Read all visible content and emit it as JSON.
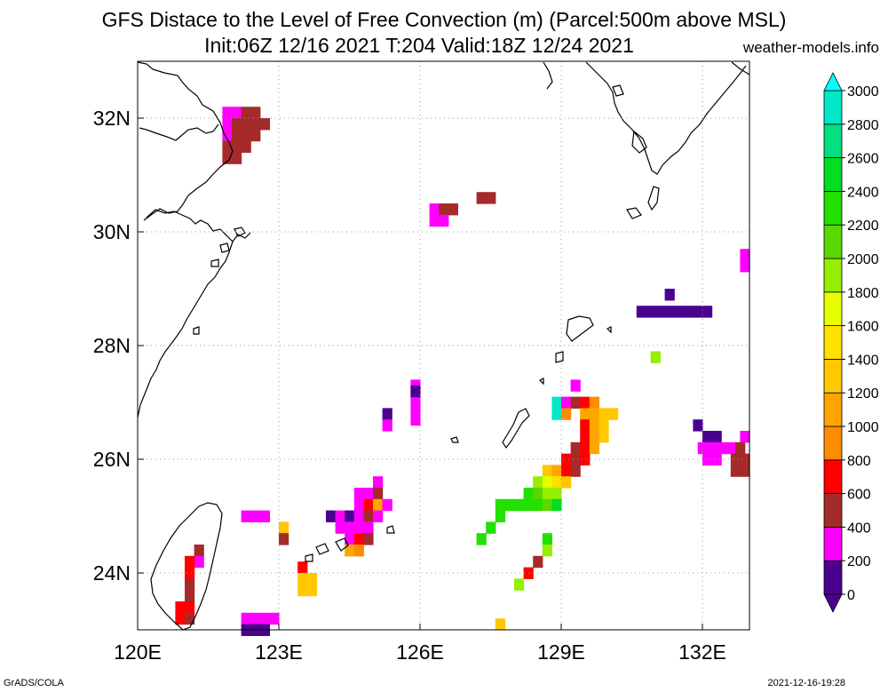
{
  "header": {
    "title_line1": "GFS Distace to the Level of Free Convection (m) (Parcel:500m above MSL)",
    "title_line2": "Init:06Z 12/16 2021 T:204 Valid:18Z 12/24 2021",
    "site": "weather-models.info"
  },
  "footer": {
    "left": "GrADS/COLA",
    "right": "2021-12-16-19:28"
  },
  "map": {
    "lon_range": [
      120,
      133
    ],
    "lat_range": [
      23,
      33
    ],
    "lon_ticks": [
      {
        "value": 120,
        "label": "120E"
      },
      {
        "value": 123,
        "label": "123E"
      },
      {
        "value": 126,
        "label": "126E"
      },
      {
        "value": 129,
        "label": "129E"
      },
      {
        "value": 132,
        "label": "132E"
      }
    ],
    "lat_ticks": [
      {
        "value": 24,
        "label": "24N"
      },
      {
        "value": 26,
        "label": "26N"
      },
      {
        "value": 28,
        "label": "28N"
      },
      {
        "value": 30,
        "label": "30N"
      },
      {
        "value": 32,
        "label": "32N"
      }
    ],
    "grid": true,
    "cells": [
      {
        "lon": 121.9,
        "lat": 32.1,
        "level": 200
      },
      {
        "lon": 122.1,
        "lat": 32.1,
        "level": 200
      },
      {
        "lon": 122.3,
        "lat": 32.1,
        "level": 400
      },
      {
        "lon": 122.5,
        "lat": 32.1,
        "level": 400
      },
      {
        "lon": 121.9,
        "lat": 31.9,
        "level": 200
      },
      {
        "lon": 122.1,
        "lat": 31.9,
        "level": 400
      },
      {
        "lon": 122.3,
        "lat": 31.9,
        "level": 400
      },
      {
        "lon": 122.5,
        "lat": 31.9,
        "level": 400
      },
      {
        "lon": 122.7,
        "lat": 31.9,
        "level": 400
      },
      {
        "lon": 121.9,
        "lat": 31.7,
        "level": 200
      },
      {
        "lon": 122.1,
        "lat": 31.7,
        "level": 400
      },
      {
        "lon": 122.3,
        "lat": 31.7,
        "level": 400
      },
      {
        "lon": 122.5,
        "lat": 31.7,
        "level": 400
      },
      {
        "lon": 121.9,
        "lat": 31.5,
        "level": 400
      },
      {
        "lon": 122.1,
        "lat": 31.5,
        "level": 400
      },
      {
        "lon": 122.3,
        "lat": 31.5,
        "level": 400
      },
      {
        "lon": 121.9,
        "lat": 31.3,
        "level": 400
      },
      {
        "lon": 122.1,
        "lat": 31.3,
        "level": 400
      },
      {
        "lon": 127.3,
        "lat": 30.6,
        "level": 400
      },
      {
        "lon": 127.5,
        "lat": 30.6,
        "level": 400
      },
      {
        "lon": 126.3,
        "lat": 30.4,
        "level": 200
      },
      {
        "lon": 126.5,
        "lat": 30.4,
        "level": 400
      },
      {
        "lon": 126.7,
        "lat": 30.4,
        "level": 400
      },
      {
        "lon": 126.3,
        "lat": 30.2,
        "level": 200
      },
      {
        "lon": 126.5,
        "lat": 30.2,
        "level": 200
      },
      {
        "lon": 132.9,
        "lat": 29.6,
        "level": 200
      },
      {
        "lon": 132.9,
        "lat": 29.4,
        "level": 200
      },
      {
        "lon": 131.3,
        "lat": 28.9,
        "level": 0
      },
      {
        "lon": 130.7,
        "lat": 28.6,
        "level": 0
      },
      {
        "lon": 130.9,
        "lat": 28.6,
        "level": 0
      },
      {
        "lon": 131.1,
        "lat": 28.6,
        "level": 0
      },
      {
        "lon": 131.3,
        "lat": 28.6,
        "level": 0
      },
      {
        "lon": 131.5,
        "lat": 28.6,
        "level": 0
      },
      {
        "lon": 131.7,
        "lat": 28.6,
        "level": 0
      },
      {
        "lon": 131.9,
        "lat": 28.6,
        "level": 0
      },
      {
        "lon": 132.1,
        "lat": 28.6,
        "level": 0
      },
      {
        "lon": 131.0,
        "lat": 27.8,
        "level": 1800
      },
      {
        "lon": 125.9,
        "lat": 27.3,
        "level": 200
      },
      {
        "lon": 125.9,
        "lat": 27.1,
        "level": 200
      },
      {
        "lon": 125.9,
        "lat": 26.9,
        "level": 200
      },
      {
        "lon": 125.9,
        "lat": 26.7,
        "level": 200
      },
      {
        "lon": 125.9,
        "lat": 27.2,
        "level": 0
      },
      {
        "lon": 125.3,
        "lat": 26.8,
        "level": 0
      },
      {
        "lon": 125.3,
        "lat": 26.6,
        "level": 200
      },
      {
        "lon": 129.3,
        "lat": 27.3,
        "level": 200
      },
      {
        "lon": 128.9,
        "lat": 27.0,
        "level": 2800
      },
      {
        "lon": 129.1,
        "lat": 27.0,
        "level": 200
      },
      {
        "lon": 129.3,
        "lat": 27.0,
        "level": 400
      },
      {
        "lon": 129.5,
        "lat": 27.0,
        "level": 600
      },
      {
        "lon": 129.7,
        "lat": 27.0,
        "level": 800
      },
      {
        "lon": 128.9,
        "lat": 26.8,
        "level": 2800
      },
      {
        "lon": 129.1,
        "lat": 26.8,
        "level": 800
      },
      {
        "lon": 129.5,
        "lat": 26.8,
        "level": 1000
      },
      {
        "lon": 129.7,
        "lat": 26.8,
        "level": 1000
      },
      {
        "lon": 129.9,
        "lat": 26.8,
        "level": 1200
      },
      {
        "lon": 130.1,
        "lat": 26.8,
        "level": 1200
      },
      {
        "lon": 129.5,
        "lat": 26.6,
        "level": 600
      },
      {
        "lon": 129.7,
        "lat": 26.6,
        "level": 1000
      },
      {
        "lon": 129.9,
        "lat": 26.6,
        "level": 1200
      },
      {
        "lon": 129.5,
        "lat": 26.4,
        "level": 600
      },
      {
        "lon": 129.7,
        "lat": 26.4,
        "level": 1000
      },
      {
        "lon": 129.9,
        "lat": 26.4,
        "level": 1200
      },
      {
        "lon": 129.3,
        "lat": 26.2,
        "level": 400
      },
      {
        "lon": 129.5,
        "lat": 26.2,
        "level": 600
      },
      {
        "lon": 129.7,
        "lat": 26.2,
        "level": 1000
      },
      {
        "lon": 129.1,
        "lat": 26.0,
        "level": 600
      },
      {
        "lon": 129.3,
        "lat": 26.0,
        "level": 400
      },
      {
        "lon": 129.5,
        "lat": 26.0,
        "level": 600
      },
      {
        "lon": 128.7,
        "lat": 25.8,
        "level": 1200
      },
      {
        "lon": 128.9,
        "lat": 25.8,
        "level": 1000
      },
      {
        "lon": 129.1,
        "lat": 25.8,
        "level": 600
      },
      {
        "lon": 129.3,
        "lat": 25.8,
        "level": 400
      },
      {
        "lon": 128.5,
        "lat": 25.6,
        "level": 1800
      },
      {
        "lon": 128.7,
        "lat": 25.6,
        "level": 1600
      },
      {
        "lon": 128.9,
        "lat": 25.6,
        "level": 1400
      },
      {
        "lon": 129.1,
        "lat": 25.6,
        "level": 1200
      },
      {
        "lon": 128.3,
        "lat": 25.4,
        "level": 2200
      },
      {
        "lon": 128.5,
        "lat": 25.4,
        "level": 2000
      },
      {
        "lon": 128.7,
        "lat": 25.4,
        "level": 1800
      },
      {
        "lon": 128.9,
        "lat": 25.4,
        "level": 1800
      },
      {
        "lon": 127.7,
        "lat": 25.2,
        "level": 2200
      },
      {
        "lon": 127.9,
        "lat": 25.2,
        "level": 2200
      },
      {
        "lon": 128.1,
        "lat": 25.2,
        "level": 2200
      },
      {
        "lon": 128.3,
        "lat": 25.2,
        "level": 2200
      },
      {
        "lon": 128.5,
        "lat": 25.2,
        "level": 2200
      },
      {
        "lon": 128.7,
        "lat": 25.2,
        "level": 2000
      },
      {
        "lon": 128.9,
        "lat": 25.2,
        "level": 2400
      },
      {
        "lon": 127.7,
        "lat": 25.0,
        "level": 2200
      },
      {
        "lon": 127.5,
        "lat": 24.8,
        "level": 2200
      },
      {
        "lon": 127.3,
        "lat": 24.6,
        "level": 2200
      },
      {
        "lon": 128.7,
        "lat": 24.6,
        "level": 2200
      },
      {
        "lon": 128.7,
        "lat": 24.4,
        "level": 1800
      },
      {
        "lon": 128.5,
        "lat": 24.2,
        "level": 400
      },
      {
        "lon": 128.3,
        "lat": 24.0,
        "level": 600
      },
      {
        "lon": 128.1,
        "lat": 23.8,
        "level": 1800
      },
      {
        "lon": 131.9,
        "lat": 26.6,
        "level": 0
      },
      {
        "lon": 132.1,
        "lat": 26.4,
        "level": 0
      },
      {
        "lon": 132.3,
        "lat": 26.4,
        "level": 0
      },
      {
        "lon": 132.9,
        "lat": 26.4,
        "level": 200
      },
      {
        "lon": 132.0,
        "lat": 26.2,
        "level": 200
      },
      {
        "lon": 132.2,
        "lat": 26.2,
        "level": 200
      },
      {
        "lon": 132.4,
        "lat": 26.2,
        "level": 200
      },
      {
        "lon": 132.6,
        "lat": 26.2,
        "level": 200
      },
      {
        "lon": 132.8,
        "lat": 26.2,
        "level": 400
      },
      {
        "lon": 132.1,
        "lat": 26.0,
        "level": 200
      },
      {
        "lon": 132.3,
        "lat": 26.0,
        "level": 200
      },
      {
        "lon": 132.7,
        "lat": 26.0,
        "level": 400
      },
      {
        "lon": 132.9,
        "lat": 26.0,
        "level": 400
      },
      {
        "lon": 132.7,
        "lat": 25.8,
        "level": 400
      },
      {
        "lon": 132.9,
        "lat": 25.8,
        "level": 400
      },
      {
        "lon": 125.1,
        "lat": 25.6,
        "level": 200
      },
      {
        "lon": 124.7,
        "lat": 25.4,
        "level": 200
      },
      {
        "lon": 124.9,
        "lat": 25.4,
        "level": 200
      },
      {
        "lon": 125.1,
        "lat": 25.4,
        "level": 400
      },
      {
        "lon": 124.7,
        "lat": 25.2,
        "level": 200
      },
      {
        "lon": 124.9,
        "lat": 25.2,
        "level": 600
      },
      {
        "lon": 125.1,
        "lat": 25.2,
        "level": 1000
      },
      {
        "lon": 125.3,
        "lat": 25.2,
        "level": 200
      },
      {
        "lon": 124.1,
        "lat": 25.0,
        "level": 0
      },
      {
        "lon": 124.3,
        "lat": 25.0,
        "level": 200
      },
      {
        "lon": 124.5,
        "lat": 25.0,
        "level": 0
      },
      {
        "lon": 124.7,
        "lat": 25.0,
        "level": 200
      },
      {
        "lon": 124.9,
        "lat": 25.0,
        "level": 400
      },
      {
        "lon": 125.1,
        "lat": 25.0,
        "level": 200
      },
      {
        "lon": 124.3,
        "lat": 24.8,
        "level": 200
      },
      {
        "lon": 124.5,
        "lat": 24.8,
        "level": 200
      },
      {
        "lon": 124.7,
        "lat": 24.8,
        "level": 200
      },
      {
        "lon": 124.9,
        "lat": 24.8,
        "level": 200
      },
      {
        "lon": 124.5,
        "lat": 24.6,
        "level": 200
      },
      {
        "lon": 124.7,
        "lat": 24.6,
        "level": 600
      },
      {
        "lon": 124.9,
        "lat": 24.6,
        "level": 400
      },
      {
        "lon": 124.5,
        "lat": 24.4,
        "level": 1000
      },
      {
        "lon": 124.7,
        "lat": 24.4,
        "level": 800
      },
      {
        "lon": 122.3,
        "lat": 25.0,
        "level": 200
      },
      {
        "lon": 122.5,
        "lat": 25.0,
        "level": 200
      },
      {
        "lon": 122.7,
        "lat": 25.0,
        "level": 200
      },
      {
        "lon": 123.1,
        "lat": 24.8,
        "level": 1200
      },
      {
        "lon": 123.1,
        "lat": 24.6,
        "level": 400
      },
      {
        "lon": 123.5,
        "lat": 24.1,
        "level": 600
      },
      {
        "lon": 123.5,
        "lat": 23.9,
        "level": 1200
      },
      {
        "lon": 123.7,
        "lat": 23.9,
        "level": 1200
      },
      {
        "lon": 123.5,
        "lat": 23.7,
        "level": 1200
      },
      {
        "lon": 123.7,
        "lat": 23.7,
        "level": 1200
      },
      {
        "lon": 121.3,
        "lat": 24.4,
        "level": 400
      },
      {
        "lon": 121.3,
        "lat": 24.2,
        "level": 200
      },
      {
        "lon": 121.1,
        "lat": 24.2,
        "level": 600
      },
      {
        "lon": 121.1,
        "lat": 24.0,
        "level": 600
      },
      {
        "lon": 121.1,
        "lat": 23.8,
        "level": 400
      },
      {
        "lon": 121.1,
        "lat": 23.6,
        "level": 400
      },
      {
        "lon": 121.1,
        "lat": 23.4,
        "level": 600
      },
      {
        "lon": 120.9,
        "lat": 23.4,
        "level": 600
      },
      {
        "lon": 120.9,
        "lat": 23.2,
        "level": 600
      },
      {
        "lon": 121.1,
        "lat": 23.2,
        "level": 400
      },
      {
        "lon": 122.3,
        "lat": 23.2,
        "level": 200
      },
      {
        "lon": 122.5,
        "lat": 23.2,
        "level": 200
      },
      {
        "lon": 122.7,
        "lat": 23.2,
        "level": 200
      },
      {
        "lon": 122.9,
        "lat": 23.2,
        "level": 200
      },
      {
        "lon": 122.3,
        "lat": 23.0,
        "level": 0
      },
      {
        "lon": 122.5,
        "lat": 23.0,
        "level": 0
      },
      {
        "lon": 122.7,
        "lat": 23.0,
        "level": 0
      },
      {
        "lon": 127.7,
        "lat": 23.1,
        "level": 1200
      }
    ]
  },
  "colorbar": {
    "labels": [
      "0",
      "200",
      "400",
      "600",
      "800",
      "1000",
      "1200",
      "1400",
      "1600",
      "1800",
      "2000",
      "2200",
      "2400",
      "2600",
      "2800",
      "3000"
    ],
    "colors": [
      "#4b0090",
      "#ff00ff",
      "#a52a2a",
      "#ff0000",
      "#ff8c00",
      "#ffa500",
      "#ffc800",
      "#ffe000",
      "#e6ff00",
      "#96ee00",
      "#5ad800",
      "#22e000",
      "#00dd22",
      "#00e080",
      "#00e8c8",
      "#00ffff"
    ],
    "under_color": "#4b0090",
    "over_color": "#00ffff"
  }
}
